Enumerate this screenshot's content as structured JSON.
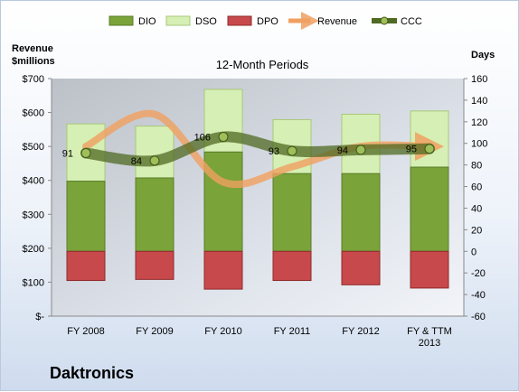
{
  "chart_data": {
    "type": "bar",
    "title": "12-Month Periods",
    "company": "Daktronics",
    "ylabel_left": [
      "Revenue",
      "$millions"
    ],
    "ylabel_right": "Days",
    "categories": [
      [
        "FY 2008"
      ],
      [
        "FY 2009"
      ],
      [
        "FY 2010"
      ],
      [
        "FY 2011"
      ],
      [
        "FY 2012"
      ],
      [
        "FY & TTM",
        "2013"
      ]
    ],
    "y_left": {
      "min": 0,
      "max": 700,
      "step": 100,
      "ticks": [
        "$-",
        "$100",
        "$200",
        "$300",
        "$400",
        "$500",
        "$600",
        "$700"
      ]
    },
    "y_right": {
      "min": -60,
      "max": 160,
      "step": 20
    },
    "legend_position": "top",
    "grid": false,
    "series": [
      {
        "name": "DIO",
        "kind": "bar-days",
        "color": "#7aa33a",
        "values": [
          65,
          68,
          92,
          72,
          72,
          78
        ]
      },
      {
        "name": "DSO",
        "kind": "bar-days",
        "color": "#d6efb4",
        "values": [
          53,
          48,
          58,
          50,
          55,
          52
        ]
      },
      {
        "name": "DPO",
        "kind": "bar-days-negative",
        "color": "#c8494b",
        "values": [
          -27,
          -26,
          -35,
          -27,
          -31,
          -34
        ]
      },
      {
        "name": "Revenue",
        "kind": "line-left-axis",
        "color": "#f0a060",
        "values": [
          500,
          595,
          395,
          440,
          500,
          500
        ]
      },
      {
        "name": "CCC",
        "kind": "line-days",
        "color": "#6a8a30",
        "values": [
          91,
          84,
          106,
          93,
          94,
          95
        ],
        "labels": [
          "91",
          "84",
          "106",
          "93",
          "94",
          "95"
        ]
      }
    ]
  }
}
